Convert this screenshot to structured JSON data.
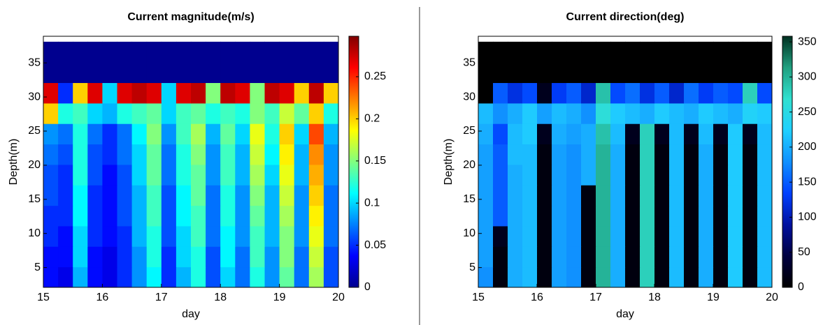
{
  "chart_data": [
    {
      "type": "heatmap",
      "title": "Current magnitude(m/s)",
      "xlabel": "day",
      "ylabel": "Depth(m)",
      "xlim": [
        15,
        20
      ],
      "ylim": [
        2.1,
        38.9
      ],
      "xticks": [
        15,
        16,
        17,
        18,
        19,
        20
      ],
      "yticks": [
        5,
        10,
        15,
        20,
        25,
        30,
        35
      ],
      "clim": [
        0,
        0.298
      ],
      "cticks": [
        0,
        0.05,
        0.1,
        0.15,
        0.2,
        0.25
      ],
      "colormap": [
        "#00008f",
        "#0000ff",
        "#0080ff",
        "#00ffff",
        "#80ff80",
        "#ffff00",
        "#ff8000",
        "#ff0000",
        "#800000"
      ],
      "x": [
        15.125,
        15.375,
        15.625,
        15.875,
        16.125,
        16.375,
        16.625,
        16.875,
        17.125,
        17.375,
        17.625,
        17.875,
        18.125,
        18.375,
        18.625,
        18.875,
        19.125,
        19.375,
        19.625,
        19.875
      ],
      "y": [
        3.6,
        6.6,
        9.6,
        12.6,
        15.6,
        18.6,
        21.6,
        24.6,
        27.6,
        30.6,
        33.6,
        36.6
      ],
      "z": [
        [
          0.04,
          0.03,
          0.09,
          0.04,
          0.03,
          0.05,
          0.08,
          0.11,
          0.05,
          0.09,
          0.12,
          0.06,
          0.1,
          0.07,
          0.12,
          0.08,
          0.14,
          0.07,
          0.16,
          0.06
        ],
        [
          0.04,
          0.04,
          0.1,
          0.04,
          0.03,
          0.05,
          0.08,
          0.12,
          0.05,
          0.1,
          0.12,
          0.06,
          0.11,
          0.07,
          0.13,
          0.08,
          0.15,
          0.07,
          0.17,
          0.06
        ],
        [
          0.05,
          0.04,
          0.1,
          0.05,
          0.04,
          0.05,
          0.09,
          0.12,
          0.06,
          0.1,
          0.13,
          0.07,
          0.11,
          0.08,
          0.13,
          0.09,
          0.15,
          0.08,
          0.18,
          0.07
        ],
        [
          0.05,
          0.05,
          0.11,
          0.05,
          0.04,
          0.06,
          0.09,
          0.13,
          0.06,
          0.11,
          0.13,
          0.07,
          0.12,
          0.08,
          0.14,
          0.09,
          0.16,
          0.08,
          0.19,
          0.07
        ],
        [
          0.06,
          0.05,
          0.11,
          0.05,
          0.04,
          0.06,
          0.09,
          0.13,
          0.06,
          0.11,
          0.14,
          0.07,
          0.12,
          0.08,
          0.15,
          0.09,
          0.17,
          0.08,
          0.2,
          0.07
        ],
        [
          0.06,
          0.05,
          0.12,
          0.06,
          0.04,
          0.06,
          0.1,
          0.14,
          0.07,
          0.12,
          0.14,
          0.08,
          0.13,
          0.09,
          0.16,
          0.1,
          0.18,
          0.09,
          0.21,
          0.08
        ],
        [
          0.07,
          0.06,
          0.12,
          0.06,
          0.05,
          0.07,
          0.1,
          0.14,
          0.07,
          0.12,
          0.15,
          0.08,
          0.13,
          0.09,
          0.17,
          0.11,
          0.19,
          0.09,
          0.22,
          0.08
        ],
        [
          0.08,
          0.07,
          0.12,
          0.07,
          0.05,
          0.07,
          0.11,
          0.15,
          0.08,
          0.13,
          0.16,
          0.09,
          0.14,
          0.1,
          0.18,
          0.12,
          0.2,
          0.1,
          0.24,
          0.09
        ],
        [
          0.2,
          0.12,
          0.13,
          0.1,
          0.09,
          0.12,
          0.13,
          0.14,
          0.1,
          0.13,
          0.14,
          0.12,
          0.13,
          0.12,
          0.15,
          0.13,
          0.17,
          0.14,
          0.2,
          0.12
        ],
        [
          0.27,
          0.05,
          0.2,
          0.27,
          0.1,
          0.27,
          0.28,
          0.27,
          0.1,
          0.27,
          0.28,
          0.15,
          0.28,
          0.27,
          0.15,
          0.28,
          0.27,
          0.2,
          0.28,
          0.2
        ],
        [
          0,
          0,
          0,
          0,
          0,
          0,
          0,
          0,
          0,
          0,
          0,
          0,
          0,
          0,
          0,
          0,
          0,
          0,
          0,
          0
        ],
        [
          0,
          0,
          0,
          0,
          0,
          0,
          0,
          0,
          0,
          0,
          0,
          0,
          0,
          0,
          0,
          0,
          0,
          0,
          0,
          0
        ]
      ]
    },
    {
      "type": "heatmap",
      "title": "Current direction(deg)",
      "xlabel": "day",
      "ylabel": "Depth(m)",
      "xlim": [
        15,
        20
      ],
      "ylim": [
        2.1,
        38.9
      ],
      "xticks": [
        15,
        16,
        17,
        18,
        19,
        20
      ],
      "yticks": [
        5,
        10,
        15,
        20,
        25,
        30,
        35
      ],
      "clim": [
        0,
        358
      ],
      "cticks": [
        0,
        50,
        100,
        150,
        200,
        250,
        300,
        350
      ],
      "colormap": [
        "#000000",
        "#000040",
        "#0010a0",
        "#0040ff",
        "#1090ff",
        "#20d0ff",
        "#30e0d0",
        "#20a080",
        "#003020"
      ],
      "x": [
        15.125,
        15.375,
        15.625,
        15.875,
        16.125,
        16.375,
        16.625,
        16.875,
        17.125,
        17.375,
        17.625,
        17.875,
        18.125,
        18.375,
        18.625,
        18.875,
        19.125,
        19.375,
        19.625,
        19.875
      ],
      "y": [
        3.6,
        6.6,
        9.6,
        12.6,
        15.6,
        18.6,
        21.6,
        24.6,
        27.6,
        30.6,
        33.6,
        36.6
      ],
      "z": [
        [
          180,
          10,
          200,
          210,
          10,
          190,
          180,
          10,
          300,
          200,
          10,
          280,
          10,
          210,
          10,
          200,
          10,
          220,
          10,
          210
        ],
        [
          190,
          10,
          200,
          210,
          10,
          190,
          180,
          10,
          300,
          200,
          10,
          280,
          10,
          210,
          10,
          200,
          10,
          220,
          10,
          210
        ],
        [
          190,
          20,
          200,
          210,
          10,
          190,
          180,
          10,
          300,
          200,
          10,
          280,
          10,
          210,
          10,
          200,
          10,
          220,
          10,
          210
        ],
        [
          190,
          150,
          200,
          210,
          10,
          190,
          180,
          10,
          300,
          200,
          10,
          280,
          10,
          210,
          10,
          200,
          10,
          220,
          10,
          210
        ],
        [
          190,
          150,
          200,
          210,
          10,
          190,
          180,
          10,
          300,
          200,
          10,
          280,
          10,
          210,
          10,
          200,
          10,
          220,
          10,
          210
        ],
        [
          190,
          150,
          200,
          210,
          10,
          190,
          180,
          200,
          300,
          200,
          10,
          280,
          10,
          210,
          10,
          200,
          10,
          220,
          10,
          210
        ],
        [
          190,
          150,
          210,
          210,
          10,
          190,
          180,
          200,
          300,
          200,
          10,
          280,
          10,
          210,
          10,
          200,
          10,
          220,
          10,
          210
        ],
        [
          200,
          140,
          210,
          220,
          20,
          200,
          190,
          200,
          290,
          210,
          20,
          280,
          20,
          210,
          20,
          210,
          20,
          220,
          20,
          210
        ],
        [
          210,
          180,
          200,
          220,
          190,
          210,
          200,
          180,
          260,
          220,
          210,
          200,
          220,
          210,
          200,
          220,
          210,
          200,
          230,
          220
        ],
        [
          0,
          150,
          120,
          140,
          20,
          130,
          150,
          110,
          290,
          140,
          160,
          120,
          150,
          110,
          160,
          130,
          150,
          140,
          280,
          140
        ],
        [
          0,
          0,
          0,
          0,
          0,
          0,
          0,
          0,
          0,
          0,
          0,
          0,
          0,
          0,
          0,
          0,
          0,
          0,
          0,
          0
        ],
        [
          0,
          0,
          0,
          0,
          0,
          0,
          0,
          0,
          0,
          0,
          0,
          0,
          0,
          0,
          0,
          0,
          0,
          0,
          0,
          0
        ]
      ]
    }
  ]
}
